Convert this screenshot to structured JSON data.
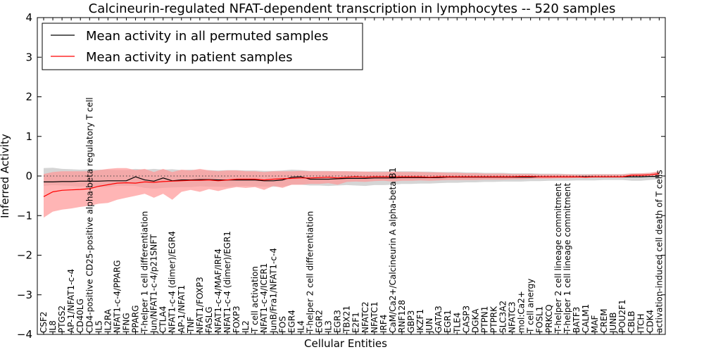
{
  "chart_data": {
    "type": "line",
    "title": "Calcineurin-regulated NFAT-dependent transcription in lymphocytes -- 520 samples",
    "xlabel": "Cellular Entities",
    "ylabel": "Inferred Activity",
    "ylim": [
      -4,
      4
    ],
    "yticks": [
      -4,
      -3,
      -2,
      -1,
      0,
      1,
      2,
      3,
      4
    ],
    "ytick_labels": [
      "−4",
      "−3",
      "−2",
      "−1",
      "0",
      "1",
      "2",
      "3",
      "4"
    ],
    "reference_line": 0,
    "legend_position": "top-left",
    "categories": [
      "CSF2",
      "IL8",
      "PTGS2",
      "AP-1/NFAT1-c-4",
      "CD40LG",
      "CD4-positive CD25-positive alpha-beta regulatory T cell",
      "IL5",
      "IL2RA",
      "NFAT1-c-4/PPARG",
      "IFNG",
      "PPARG",
      "T-helper 1 cell differentiation",
      "Jun/NFAT1-c-4/p21SNFT",
      "CTLA4",
      "NFAT1-c-4 (dimer)/EGR4",
      "AP-1/NFAT1",
      "TNF",
      "NFAT1/FOXP3",
      "FASLG",
      "NFAT1-c-4/MAF/IRF4",
      "NFAT1-c-4 (dimer)/EGR1",
      "FOXP3",
      "IL2",
      "T cell activation",
      "NFAT1-c-4/ICER1",
      "JunB/Fra1/NFAT1-c-4",
      "FOS",
      "EGR4",
      "IL4",
      "T-helper 2 cell differentiation",
      "EGR2",
      "IL3",
      "EGR3",
      "TBX21",
      "E2F1",
      "NFATC2",
      "NFATC1",
      "IRF4",
      "CaM/Ca2+/Calcineurin A alpha-beta B1",
      "RNF128",
      "GBP3",
      "IKZF1",
      "JUN",
      "GATA3",
      "EGR1",
      "TLE4",
      "CASP3",
      "DGKA",
      "PTPN1",
      "PTPRK",
      "SLC3A2",
      "NFATC3",
      "mol:Ca2+",
      "T cell anergy",
      "FOSL1",
      "PRKCQ",
      "T-helper 2 cell lineage commitment",
      "T-helper 1 cell lineage commitment",
      "BATF3",
      "CALM1",
      "MAF",
      "CREM",
      "JUNB",
      "POU2F1",
      "CBLB",
      "ITCH",
      "CDK4",
      "activation-induced cell death of T cells"
    ],
    "series": [
      {
        "name": "Mean activity in all permuted samples",
        "color": "#000000",
        "band_color": "#b3b3b3",
        "values": [
          -0.15,
          -0.15,
          -0.14,
          -0.14,
          -0.13,
          -0.13,
          -0.13,
          -0.12,
          -0.12,
          -0.12,
          -0.02,
          -0.1,
          -0.13,
          -0.05,
          -0.12,
          -0.1,
          -0.1,
          -0.09,
          -0.09,
          -0.1,
          -0.1,
          -0.1,
          -0.1,
          -0.1,
          -0.12,
          -0.12,
          -0.1,
          -0.03,
          -0.02,
          -0.08,
          -0.08,
          -0.08,
          -0.07,
          -0.06,
          -0.06,
          -0.06,
          -0.05,
          -0.05,
          -0.05,
          -0.04,
          -0.04,
          -0.04,
          -0.04,
          -0.04,
          -0.03,
          -0.03,
          -0.03,
          -0.03,
          -0.03,
          -0.03,
          -0.03,
          -0.03,
          -0.03,
          -0.03,
          -0.02,
          -0.02,
          -0.02,
          -0.02,
          -0.02,
          -0.02,
          -0.02,
          -0.02,
          -0.02,
          -0.02,
          -0.02,
          -0.02,
          -0.01,
          -0.01
        ],
        "band_low": [
          -0.25,
          -0.23,
          -0.24,
          -0.25,
          -0.27,
          -0.25,
          -0.28,
          -0.28,
          -0.25,
          -0.25,
          -0.25,
          -0.3,
          -0.32,
          -0.3,
          -0.29,
          -0.28,
          -0.28,
          -0.26,
          -0.27,
          -0.27,
          -0.28,
          -0.26,
          -0.25,
          -0.26,
          -0.27,
          -0.27,
          -0.27,
          -0.22,
          -0.22,
          -0.24,
          -0.24,
          -0.25,
          -0.24,
          -0.23,
          -0.24,
          -0.25,
          -0.23,
          -0.23,
          -0.22,
          -0.2,
          -0.2,
          -0.19,
          -0.19,
          -0.18,
          -0.17,
          -0.17,
          -0.16,
          -0.16,
          -0.15,
          -0.15,
          -0.14,
          -0.14,
          -0.14,
          -0.13,
          -0.13,
          -0.12,
          -0.12,
          -0.12,
          -0.11,
          -0.11,
          -0.11,
          -0.1,
          -0.1,
          -0.1,
          -0.12,
          -0.12,
          -0.1,
          -0.08
        ],
        "band_high": [
          0.2,
          0.21,
          0.18,
          0.17,
          0.16,
          0.17,
          0.16,
          0.16,
          0.15,
          0.15,
          0.18,
          0.16,
          0.18,
          0.16,
          0.17,
          0.15,
          0.16,
          0.15,
          0.15,
          0.14,
          0.15,
          0.15,
          0.14,
          0.14,
          0.13,
          0.13,
          0.14,
          0.16,
          0.15,
          0.13,
          0.13,
          0.13,
          0.12,
          0.12,
          0.12,
          0.11,
          0.12,
          0.12,
          0.12,
          0.12,
          0.12,
          0.11,
          0.11,
          0.1,
          0.1,
          0.1,
          0.09,
          0.09,
          0.08,
          0.08,
          0.08,
          0.07,
          0.07,
          0.07,
          0.06,
          0.06,
          0.06,
          0.05,
          0.05,
          0.05,
          0.05,
          0.05,
          0.05,
          0.05,
          0.07,
          0.07,
          0.08,
          0.1
        ]
      },
      {
        "name": "Mean activity in patient samples",
        "color": "#ff0000",
        "band_color": "#ff9999",
        "values": [
          -0.52,
          -0.4,
          -0.36,
          -0.35,
          -0.34,
          -0.32,
          -0.26,
          -0.22,
          -0.18,
          -0.17,
          -0.18,
          -0.15,
          -0.16,
          -0.14,
          -0.13,
          -0.12,
          -0.11,
          -0.11,
          -0.1,
          -0.12,
          -0.1,
          -0.08,
          -0.08,
          -0.08,
          -0.1,
          -0.08,
          -0.07,
          -0.06,
          -0.05,
          -0.05,
          -0.04,
          -0.03,
          -0.05,
          -0.03,
          -0.02,
          -0.03,
          -0.02,
          -0.02,
          -0.02,
          -0.02,
          -0.02,
          -0.02,
          -0.03,
          -0.02,
          -0.02,
          -0.02,
          -0.02,
          -0.02,
          -0.02,
          -0.02,
          -0.02,
          -0.02,
          -0.01,
          -0.01,
          -0.02,
          -0.02,
          -0.02,
          -0.02,
          -0.02,
          -0.03,
          -0.02,
          -0.02,
          -0.02,
          -0.02,
          0.02,
          0.02,
          0.03,
          0.06
        ],
        "band_low": [
          -1.05,
          -0.9,
          -0.85,
          -0.82,
          -0.78,
          -0.75,
          -0.7,
          -0.68,
          -0.6,
          -0.55,
          -0.5,
          -0.45,
          -0.55,
          -0.45,
          -0.6,
          -0.4,
          -0.35,
          -0.4,
          -0.33,
          -0.38,
          -0.32,
          -0.28,
          -0.3,
          -0.28,
          -0.35,
          -0.25,
          -0.3,
          -0.22,
          -0.22,
          -0.2,
          -0.2,
          -0.18,
          -0.22,
          -0.15,
          -0.14,
          -0.15,
          -0.13,
          -0.12,
          -0.14,
          -0.12,
          -0.12,
          -0.11,
          -0.12,
          -0.11,
          -0.1,
          -0.1,
          -0.1,
          -0.1,
          -0.09,
          -0.09,
          -0.09,
          -0.08,
          -0.08,
          -0.07,
          -0.07,
          -0.07,
          -0.06,
          -0.06,
          -0.05,
          -0.05,
          -0.04,
          -0.04,
          -0.04,
          -0.04,
          -0.03,
          -0.02,
          -0.02,
          0.0
        ],
        "band_high": [
          0.05,
          0.1,
          0.12,
          0.12,
          0.12,
          0.12,
          0.15,
          0.18,
          0.2,
          0.2,
          0.15,
          0.18,
          0.1,
          0.18,
          0.1,
          0.16,
          0.14,
          0.18,
          0.14,
          0.12,
          0.14,
          0.14,
          0.12,
          0.12,
          0.1,
          0.12,
          0.12,
          0.12,
          0.13,
          0.12,
          0.12,
          0.12,
          0.12,
          0.12,
          0.11,
          0.11,
          0.1,
          0.1,
          0.11,
          0.1,
          0.1,
          0.1,
          0.09,
          0.09,
          0.08,
          0.08,
          0.07,
          0.07,
          0.06,
          0.06,
          0.06,
          0.05,
          0.05,
          0.05,
          0.04,
          0.04,
          0.04,
          0.04,
          0.03,
          0.03,
          0.04,
          0.04,
          0.04,
          0.04,
          0.06,
          0.07,
          0.08,
          0.12
        ]
      }
    ]
  }
}
